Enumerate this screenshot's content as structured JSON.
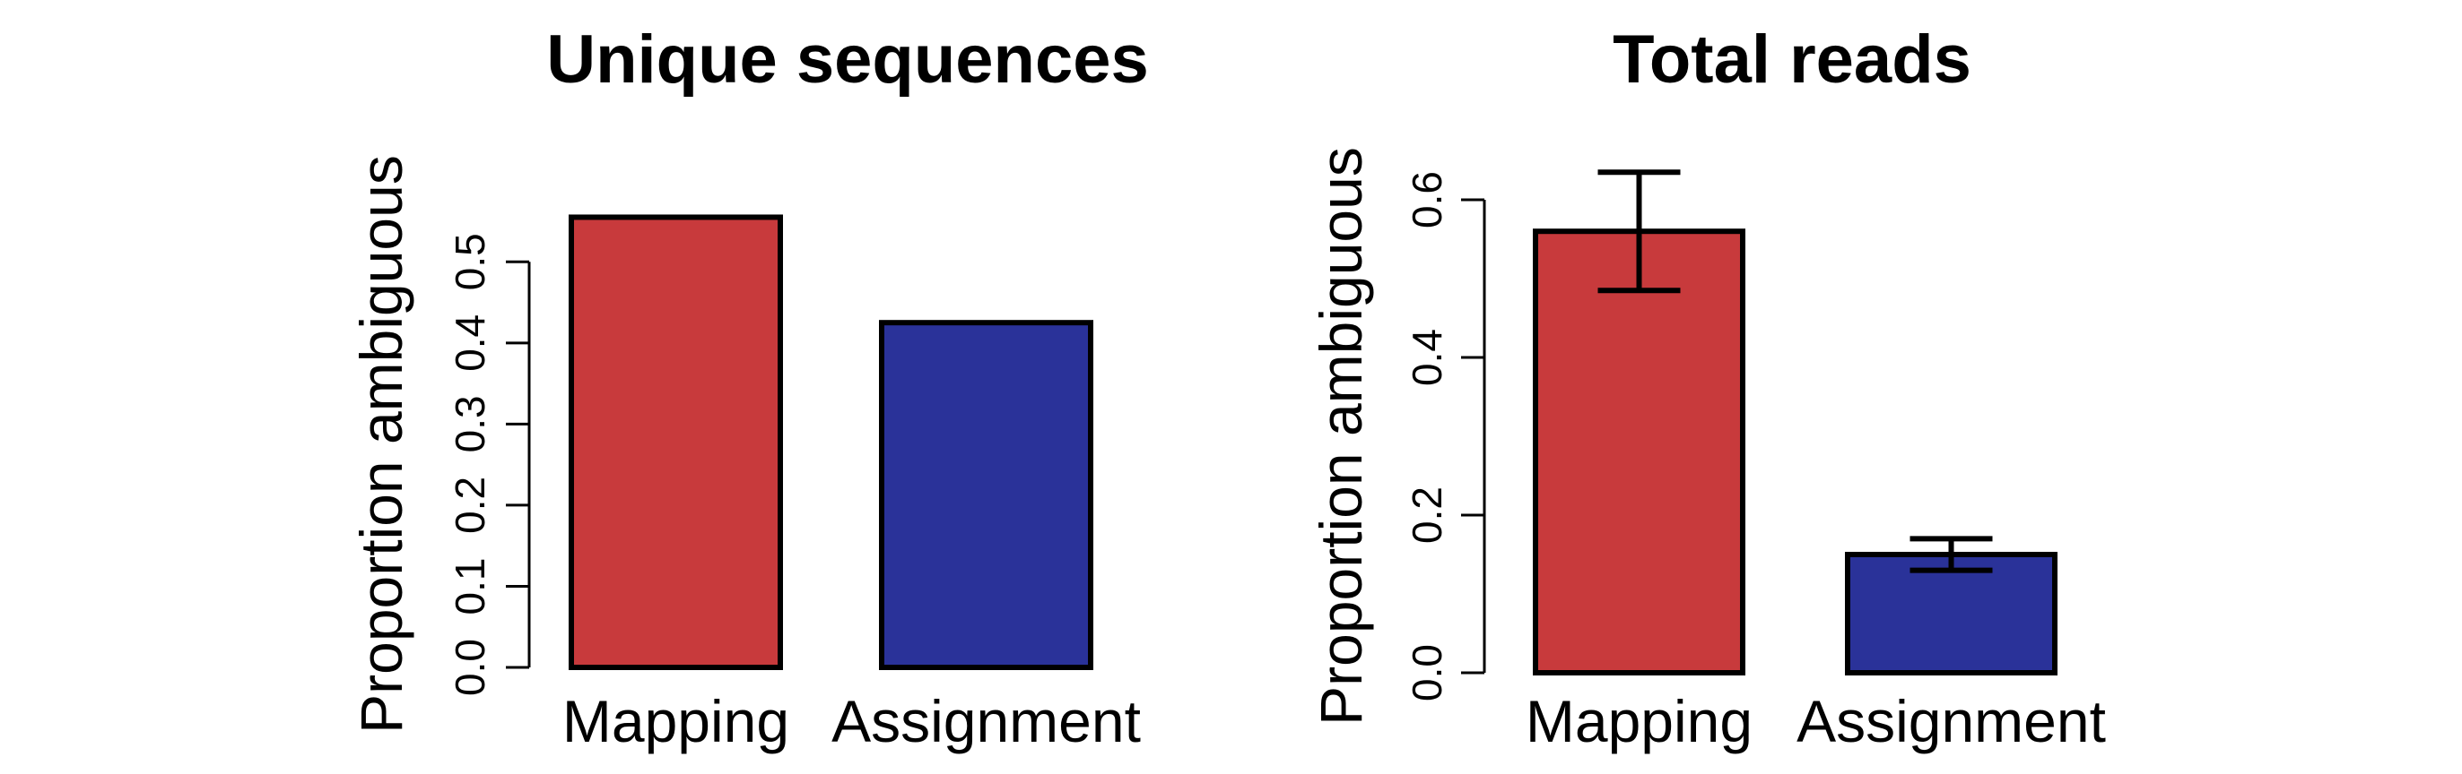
{
  "chart_data": [
    {
      "type": "bar",
      "title": "Unique sequences",
      "ylabel": "Proportion ambiguous",
      "xlabel": "",
      "categories": [
        "Mapping",
        "Assignment"
      ],
      "values": [
        0.555,
        0.425
      ],
      "colors": [
        "#c83a3c",
        "#2a3299"
      ],
      "ylim": [
        0,
        0.55
      ],
      "yticks": [
        0.0,
        0.1,
        0.2,
        0.3,
        0.4,
        0.5
      ],
      "ytick_labels": [
        "0.0",
        "0.1",
        "0.2",
        "0.3",
        "0.4",
        "0.5"
      ],
      "error_bars": null
    },
    {
      "type": "bar",
      "title": "Total reads",
      "ylabel": "Proportion ambiguous",
      "xlabel": "",
      "categories": [
        "Mapping",
        "Assignment"
      ],
      "values": [
        0.56,
        0.15
      ],
      "colors": [
        "#c83a3c",
        "#2a3299"
      ],
      "ylim": [
        0,
        0.6
      ],
      "yticks": [
        0.0,
        0.2,
        0.4,
        0.6
      ],
      "ytick_labels": [
        "0.0",
        "0.2",
        "0.4",
        "0.6"
      ],
      "error_bars": [
        [
          0.485,
          0.635
        ],
        [
          0.13,
          0.17
        ]
      ]
    }
  ]
}
